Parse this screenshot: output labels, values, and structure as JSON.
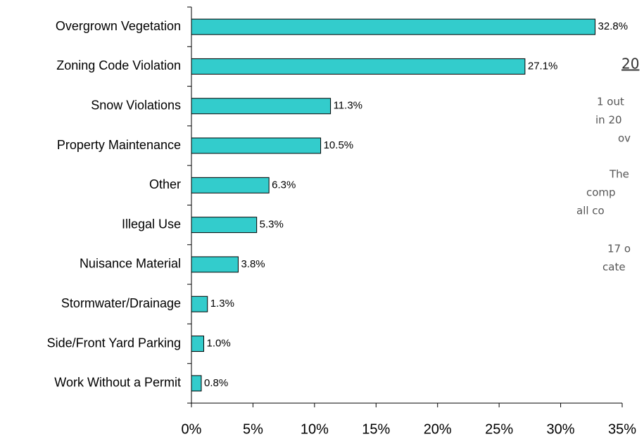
{
  "chart_data": {
    "type": "barh",
    "categories": [
      "Overgrown Vegetation",
      "Zoning Code Violation",
      "Snow Violations",
      "Property Maintenance",
      "Other",
      "Illegal Use",
      "Nuisance Material",
      "Stormwater/Drainage",
      "Side/Front Yard Parking",
      "Work Without a Permit"
    ],
    "values": [
      32.8,
      27.1,
      11.3,
      10.5,
      6.3,
      5.3,
      3.8,
      1.3,
      1.0,
      0.8
    ],
    "value_labels": [
      "32.8%",
      "27.1%",
      "11.3%",
      "10.5%",
      "6.3%",
      "5.3%",
      "3.8%",
      "1.3%",
      "1.0%",
      "0.8%"
    ],
    "color": "#33cccc",
    "xlim": [
      0,
      35
    ],
    "xticks": [
      {
        "value": 0,
        "label": "0%"
      },
      {
        "value": 5,
        "label": "5%"
      },
      {
        "value": 10,
        "label": "10%"
      },
      {
        "value": 15,
        "label": "15%"
      },
      {
        "value": 20,
        "label": "20%"
      },
      {
        "value": 25,
        "label": "25%"
      },
      {
        "value": 30,
        "label": "30%"
      },
      {
        "value": 35,
        "label": "35%"
      }
    ],
    "grid": false,
    "annotations": [
      "20",
      "1 out",
      "in 20",
      "ov",
      "The",
      "comp",
      "all co",
      "17 o",
      "cate"
    ]
  }
}
